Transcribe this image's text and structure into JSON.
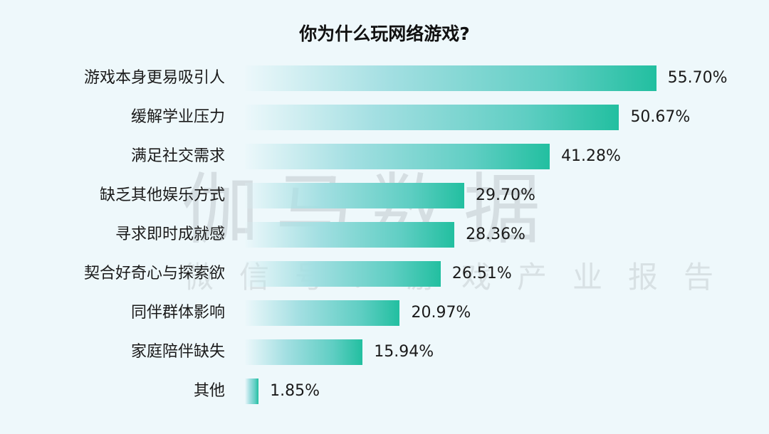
{
  "chart_data": {
    "type": "bar",
    "orientation": "horizontal",
    "title": "你为什么玩网络游戏?",
    "categories": [
      "游戏本身更易吸引人",
      "缓解学业压力",
      "满足社交需求",
      "缺乏其他娱乐方式",
      "寻求即时成就感",
      "契合好奇心与探索欲",
      "同伴群体影响",
      "家庭陪伴缺失",
      "其他"
    ],
    "values": [
      55.7,
      50.67,
      41.28,
      29.7,
      28.36,
      26.51,
      20.97,
      15.94,
      1.85
    ],
    "value_labels": [
      "55.70%",
      "50.67%",
      "41.28%",
      "29.70%",
      "28.36%",
      "26.51%",
      "20.97%",
      "15.94%",
      "1.85%"
    ],
    "xlabel": "",
    "ylabel": "",
    "unit": "%",
    "grid": false,
    "legend": null,
    "colors": {
      "bar_start": "#e6f6fa",
      "bar_end": "#22bfa0",
      "background": "#eef8fb"
    }
  },
  "watermark": {
    "main": "伽马数据",
    "sub": "微信号：游戏产业报告"
  }
}
